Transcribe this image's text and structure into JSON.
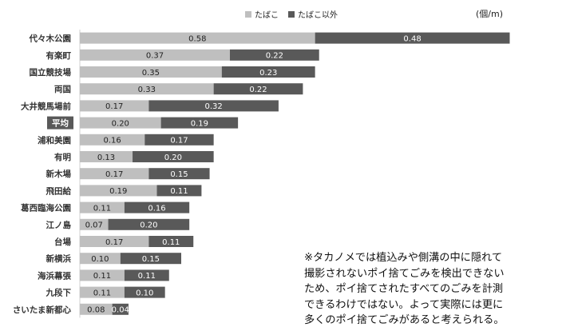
{
  "chart_data": {
    "type": "bar",
    "orientation": "horizontal",
    "stacked": true,
    "unit": "(個/m)",
    "categories": [
      "代々木公園",
      "有楽町",
      "国立競技場",
      "両国",
      "大井競馬場前",
      "平均",
      "浦和美園",
      "有明",
      "新木場",
      "飛田給",
      "葛西臨海公園",
      "江ノ島",
      "台場",
      "新横浜",
      "海浜幕張",
      "九段下",
      "さいたま新都心"
    ],
    "highlight_category": "平均",
    "series": [
      {
        "name": "たばこ",
        "color": "#bfbfbf",
        "values": [
          0.58,
          0.37,
          0.35,
          0.33,
          0.17,
          0.2,
          0.16,
          0.13,
          0.17,
          0.19,
          0.11,
          0.07,
          0.17,
          0.1,
          0.11,
          0.11,
          0.08
        ],
        "labels": [
          "0.58",
          "0.37",
          "0.35",
          "0.33",
          "0.17",
          "0.20",
          "0.16",
          "0.13",
          "0.17",
          "0.19",
          "0.11",
          "0.07",
          "0.17",
          "0.10",
          "0.11",
          "0.11",
          "0.08"
        ]
      },
      {
        "name": "たばこ以外",
        "color": "#595959",
        "values": [
          0.48,
          0.22,
          0.23,
          0.22,
          0.32,
          0.19,
          0.17,
          0.2,
          0.15,
          0.11,
          0.16,
          0.2,
          0.11,
          0.15,
          0.11,
          0.1,
          0.04
        ],
        "labels": [
          "0.48",
          "0.22",
          "0.23",
          "0.22",
          "0.32",
          "0.19",
          "0.17",
          "0.20",
          "0.15",
          "0.11",
          "0.16",
          "0.20",
          "0.11",
          "0.15",
          "0.11",
          "0.10",
          "0.04"
        ]
      }
    ],
    "legend_position": "top",
    "grid": false
  },
  "note": {
    "lines": [
      "※タカノメでは植込みや側溝の中に隠れて",
      "撮影されないポイ捨てごみを検出できない",
      "ため、ポイ捨てされたすべてのごみを計測",
      "できるわけではない。よって実際には更に",
      "多くのポイ捨てごみがあると考えられる。"
    ]
  }
}
